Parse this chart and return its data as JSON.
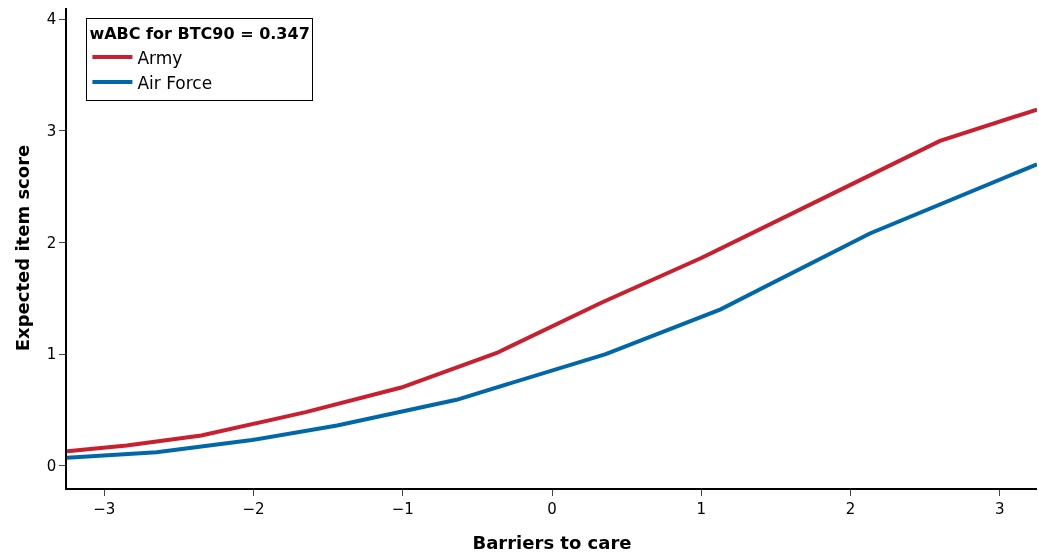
{
  "chart_data": {
    "type": "line",
    "xlabel": "Barriers to care",
    "ylabel": "Expected item score",
    "legend_title": "wABC for BTC90 = 0.347",
    "legend": "top left",
    "grid": false,
    "marker": "none",
    "line_style": "solid",
    "xlim": [
      -3.25,
      3.25
    ],
    "xticks": [
      {
        "value": -3,
        "label": "−3"
      },
      {
        "value": -2,
        "label": "−2"
      },
      {
        "value": -1,
        "label": "−1"
      },
      0,
      1,
      2,
      3
    ],
    "ylim": [
      -0.2,
      4.1
    ],
    "yticks": [
      0,
      1,
      2,
      3,
      4
    ],
    "series": [
      {
        "name": "Army",
        "color": "#c8202f",
        "x": [
          -3.25,
          -2.85,
          -2.35,
          -1.65,
          -1.01,
          -0.37,
          0.33,
          1.0,
          1.87,
          2.6,
          3.25
        ],
        "values": [
          0.13,
          0.18,
          0.27,
          0.48,
          0.7,
          1.01,
          1.46,
          1.86,
          2.43,
          2.91,
          3.19
        ]
      },
      {
        "name": "Air Force",
        "color": "#0068a8",
        "x": [
          -3.25,
          -2.65,
          -2.01,
          -1.44,
          -0.64,
          0.36,
          1.13,
          2.13,
          3.25
        ],
        "values": [
          0.07,
          0.12,
          0.23,
          0.36,
          0.59,
          1.0,
          1.4,
          2.08,
          2.7
        ]
      }
    ]
  }
}
